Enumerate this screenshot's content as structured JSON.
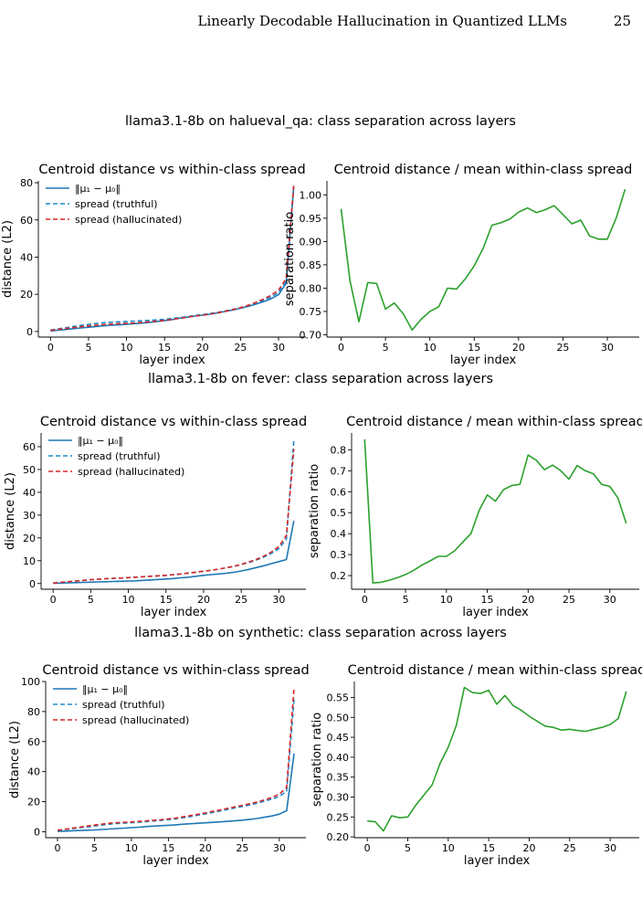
{
  "header": {
    "running_title": "Linearly Decodable Hallucination in Quantized LLMs",
    "page_number": "25"
  },
  "chart_data": [
    {
      "suptitle": "llama3.1-8b on halueval_qa: class separation across layers",
      "left": {
        "type": "line",
        "title": "Centroid distance vs within-class spread",
        "xlabel": "layer index",
        "ylabel": "distance (L2)",
        "xlim": [
          -1.6,
          33.6
        ],
        "ylim": [
          -3,
          81
        ],
        "xticks": [
          0,
          5,
          10,
          15,
          20,
          25,
          30
        ],
        "yticks": [
          0,
          20,
          40,
          60,
          80
        ],
        "legend": "top-left",
        "x": [
          0,
          1,
          2,
          3,
          4,
          5,
          6,
          7,
          8,
          9,
          10,
          11,
          12,
          13,
          14,
          15,
          16,
          17,
          18,
          19,
          20,
          21,
          22,
          23,
          24,
          25,
          26,
          27,
          28,
          29,
          30,
          31,
          32
        ],
        "series": [
          {
            "name": "‖μ₁ − μ₀‖",
            "color": "#1f77b4",
            "dash": "solid",
            "values": [
              0.3,
              0.7,
              1.1,
              1.5,
              1.9,
              2.3,
              2.7,
              3.1,
              3.4,
              3.6,
              3.9,
              4.2,
              4.5,
              4.9,
              5.4,
              5.9,
              6.4,
              7.1,
              7.7,
              8.3,
              8.8,
              9.3,
              10,
              10.8,
              11.6,
              12.5,
              13.5,
              14.7,
              16,
              17.6,
              19.8,
              26,
              78
            ]
          },
          {
            "name": "spread (truthful)",
            "color": "#1f8ac9",
            "dash": "dashed",
            "values": [
              0.8,
              1.4,
              2.0,
              2.7,
              3.3,
              3.9,
              4.3,
              4.7,
              5.0,
              5.2,
              5.4,
              5.6,
              5.8,
              6.0,
              6.3,
              6.6,
              7.0,
              7.5,
              8.0,
              8.6,
              9.1,
              9.7,
              10.3,
              11.1,
              11.9,
              12.8,
              14,
              15.3,
              16.8,
              18.5,
              21,
              27,
              79
            ]
          },
          {
            "name": "spread (hallucinated)",
            "color": "#d62728",
            "dash": "dashed",
            "values": [
              0.6,
              1.1,
              1.6,
              2.1,
              2.6,
              3.0,
              3.4,
              3.7,
              4.0,
              4.2,
              4.4,
              4.6,
              4.9,
              5.2,
              5.6,
              6.0,
              6.5,
              7.1,
              7.7,
              8.3,
              8.8,
              9.4,
              10.1,
              10.9,
              11.8,
              12.8,
              14.1,
              15.6,
              17.4,
              19.5,
              22.3,
              28.5,
              79
            ]
          }
        ]
      },
      "right": {
        "type": "line",
        "title": "Centroid distance / mean within-class spread",
        "xlabel": "layer index",
        "ylabel": "separation ratio",
        "xlim": [
          -1.6,
          33.6
        ],
        "ylim": [
          0.695,
          1.03
        ],
        "xticks": [
          0,
          5,
          10,
          15,
          20,
          25,
          30
        ],
        "yticks": [
          0.7,
          0.75,
          0.8,
          0.85,
          0.9,
          0.95,
          1.0
        ],
        "yticklabels": [
          "0.70",
          "0.75",
          "0.80",
          "0.85",
          "0.90",
          "0.95",
          "1.00"
        ],
        "color": "#2ca02c",
        "x": [
          0,
          1,
          2,
          3,
          4,
          5,
          6,
          7,
          8,
          9,
          10,
          11,
          12,
          13,
          14,
          15,
          16,
          17,
          18,
          19,
          20,
          21,
          22,
          23,
          24,
          25,
          26,
          27,
          28,
          29,
          30,
          31,
          32
        ],
        "values": [
          0.97,
          0.815,
          0.728,
          0.812,
          0.81,
          0.755,
          0.768,
          0.745,
          0.71,
          0.733,
          0.75,
          0.76,
          0.8,
          0.798,
          0.82,
          0.848,
          0.885,
          0.935,
          0.94,
          0.948,
          0.963,
          0.972,
          0.962,
          0.968,
          0.977,
          0.958,
          0.938,
          0.946,
          0.912,
          0.905,
          0.905,
          0.95,
          1.012
        ]
      }
    },
    {
      "suptitle": "llama3.1-8b on fever: class separation across layers",
      "left": {
        "type": "line",
        "title": "Centroid distance vs within-class spread",
        "xlabel": "layer index",
        "ylabel": "distance (L2)",
        "xlim": [
          -1.6,
          33.6
        ],
        "ylim": [
          -2.5,
          66
        ],
        "xticks": [
          0,
          5,
          10,
          15,
          20,
          25,
          30
        ],
        "yticks": [
          0,
          10,
          20,
          30,
          40,
          50,
          60
        ],
        "legend": "top-left",
        "x": [
          0,
          1,
          2,
          3,
          4,
          5,
          6,
          7,
          8,
          9,
          10,
          11,
          12,
          13,
          14,
          15,
          16,
          17,
          18,
          19,
          20,
          21,
          22,
          23,
          24,
          25,
          26,
          27,
          28,
          29,
          30,
          31,
          32
        ],
        "series": [
          {
            "name": "‖μ₁ − μ₀‖",
            "color": "#1f77b4",
            "dash": "solid",
            "values": [
              0.1,
              0.2,
              0.3,
              0.4,
              0.5,
              0.6,
              0.7,
              0.8,
              0.9,
              1.0,
              1.1,
              1.2,
              1.4,
              1.6,
              1.8,
              2.0,
              2.2,
              2.5,
              2.8,
              3.2,
              3.6,
              3.9,
              4.2,
              4.5,
              4.9,
              5.5,
              6.2,
              7.0,
              7.8,
              8.7,
              9.6,
              10.5,
              27.5
            ]
          },
          {
            "name": "spread (truthful)",
            "color": "#1f8ac9",
            "dash": "dashed",
            "values": [
              0.2,
              0.5,
              0.8,
              1.1,
              1.4,
              1.7,
              1.9,
              2.1,
              2.3,
              2.4,
              2.6,
              2.8,
              3.0,
              3.2,
              3.4,
              3.6,
              3.9,
              4.2,
              4.6,
              5.0,
              5.4,
              5.8,
              6.3,
              6.9,
              7.5,
              8.3,
              9.2,
              10.3,
              11.6,
              13.2,
              15.3,
              19.5,
              63
            ]
          },
          {
            "name": "spread (hallucinated)",
            "color": "#d62728",
            "dash": "dashed",
            "values": [
              0.2,
              0.5,
              0.8,
              1.1,
              1.4,
              1.7,
              1.9,
              2.1,
              2.3,
              2.4,
              2.6,
              2.8,
              3.0,
              3.2,
              3.4,
              3.6,
              3.9,
              4.2,
              4.6,
              5.0,
              5.4,
              5.8,
              6.3,
              6.9,
              7.5,
              8.4,
              9.4,
              10.6,
              12.0,
              13.8,
              16.2,
              21,
              59
            ]
          }
        ]
      },
      "right": {
        "type": "line",
        "title": "Centroid distance / mean within-class spread",
        "xlabel": "layer index",
        "ylabel": "separation ratio",
        "xlim": [
          -1.6,
          33.6
        ],
        "ylim": [
          0.135,
          0.88
        ],
        "xticks": [
          0,
          5,
          10,
          15,
          20,
          25,
          30
        ],
        "yticks": [
          0.2,
          0.3,
          0.4,
          0.5,
          0.6,
          0.7,
          0.8
        ],
        "yticklabels": [
          "0.2",
          "0.3",
          "0.4",
          "0.5",
          "0.6",
          "0.7",
          "0.8"
        ],
        "color": "#2ca02c",
        "x": [
          0,
          1,
          2,
          3,
          4,
          5,
          6,
          7,
          8,
          9,
          10,
          11,
          12,
          13,
          14,
          15,
          16,
          17,
          18,
          19,
          20,
          21,
          22,
          23,
          24,
          25,
          26,
          27,
          28,
          29,
          30,
          31,
          32
        ],
        "values": [
          0.85,
          0.165,
          0.168,
          0.178,
          0.19,
          0.205,
          0.225,
          0.25,
          0.27,
          0.292,
          0.292,
          0.318,
          0.36,
          0.4,
          0.51,
          0.585,
          0.555,
          0.61,
          0.63,
          0.635,
          0.775,
          0.75,
          0.705,
          0.727,
          0.7,
          0.66,
          0.725,
          0.7,
          0.685,
          0.635,
          0.625,
          0.57,
          0.45
        ]
      }
    },
    {
      "suptitle": "llama3.1-8b on synthetic: class separation across layers",
      "left": {
        "type": "line",
        "title": "Centroid distance vs within-class spread",
        "xlabel": "layer index",
        "ylabel": "distance (L2)",
        "xlim": [
          -1.6,
          33.6
        ],
        "ylim": [
          -4,
          100
        ],
        "xticks": [
          0,
          5,
          10,
          15,
          20,
          25,
          30
        ],
        "yticks": [
          0,
          20,
          40,
          60,
          80,
          100
        ],
        "legend": "top-left",
        "x": [
          0,
          1,
          2,
          3,
          4,
          5,
          6,
          7,
          8,
          9,
          10,
          11,
          12,
          13,
          14,
          15,
          16,
          17,
          18,
          19,
          20,
          21,
          22,
          23,
          24,
          25,
          26,
          27,
          28,
          29,
          30,
          31,
          32
        ],
        "series": [
          {
            "name": "‖μ₁ − μ₀‖",
            "color": "#1f77b4",
            "dash": "solid",
            "values": [
              0.2,
              0.4,
              0.6,
              0.8,
              1.0,
              1.2,
              1.5,
              1.8,
              2.1,
              2.4,
              2.7,
              3.0,
              3.4,
              3.7,
              4.0,
              4.3,
              4.6,
              5.0,
              5.3,
              5.6,
              5.9,
              6.2,
              6.5,
              6.9,
              7.3,
              7.7,
              8.2,
              8.8,
              9.6,
              10.5,
              11.7,
              14,
              52
            ]
          },
          {
            "name": "spread (truthful)",
            "color": "#1f8ac9",
            "dash": "dashed",
            "values": [
              0.8,
              1.4,
              2.0,
              2.6,
              3.2,
              3.8,
              4.4,
              5.0,
              5.4,
              5.7,
              6.0,
              6.3,
              6.7,
              7.1,
              7.5,
              8.0,
              8.6,
              9.3,
              10.1,
              11.0,
              11.9,
              12.8,
              13.8,
              14.8,
              15.8,
              16.8,
              17.8,
              19.0,
              20.3,
              21.7,
              23.5,
              27,
              88
            ]
          },
          {
            "name": "spread (hallucinated)",
            "color": "#d62728",
            "dash": "dashed",
            "values": [
              1.0,
              1.6,
              2.3,
              3.0,
              3.7,
              4.4,
              5.0,
              5.6,
              6.0,
              6.2,
              6.5,
              6.8,
              7.2,
              7.6,
              8.0,
              8.5,
              9.1,
              9.9,
              10.7,
              11.6,
              12.5,
              13.5,
              14.5,
              15.5,
              16.5,
              17.5,
              18.6,
              19.8,
              21.2,
              22.8,
              25,
              29.5,
              96
            ]
          }
        ]
      },
      "right": {
        "type": "line",
        "title": "Centroid distance / mean within-class spread",
        "xlabel": "layer index",
        "ylabel": "separation ratio",
        "xlim": [
          -1.6,
          33.6
        ],
        "ylim": [
          0.198,
          0.59
        ],
        "xticks": [
          0,
          5,
          10,
          15,
          20,
          25,
          30
        ],
        "yticks": [
          0.2,
          0.25,
          0.3,
          0.35,
          0.4,
          0.45,
          0.5,
          0.55
        ],
        "yticklabels": [
          "0.20",
          "0.25",
          "0.30",
          "0.35",
          "0.40",
          "0.45",
          "0.50",
          "0.55"
        ],
        "color": "#2ca02c",
        "x": [
          0,
          1,
          2,
          3,
          4,
          5,
          6,
          7,
          8,
          9,
          10,
          11,
          12,
          13,
          14,
          15,
          16,
          17,
          18,
          19,
          20,
          21,
          22,
          23,
          24,
          25,
          26,
          27,
          28,
          29,
          30,
          31,
          32
        ],
        "values": [
          0.24,
          0.238,
          0.215,
          0.253,
          0.248,
          0.25,
          0.28,
          0.305,
          0.33,
          0.385,
          0.425,
          0.48,
          0.575,
          0.562,
          0.56,
          0.568,
          0.533,
          0.555,
          0.53,
          0.518,
          0.503,
          0.49,
          0.478,
          0.475,
          0.468,
          0.47,
          0.467,
          0.465,
          0.47,
          0.475,
          0.482,
          0.497,
          0.565
        ]
      }
    }
  ]
}
